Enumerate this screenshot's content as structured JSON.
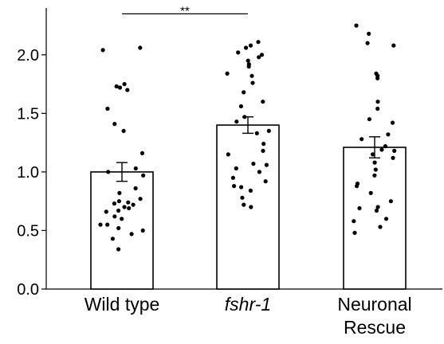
{
  "chart_data": {
    "type": "bar",
    "categories": [
      {
        "lines": [
          "Wild type"
        ],
        "italic": false
      },
      {
        "lines": [
          "fshr-1"
        ],
        "italic": true
      },
      {
        "lines": [
          "Neuronal",
          "Rescue"
        ],
        "italic": false
      }
    ],
    "values": [
      1.0,
      1.4,
      1.21
    ],
    "error": [
      0.08,
      0.07,
      0.09
    ],
    "ylim": [
      0,
      2.4
    ],
    "yticks": [
      "0.0",
      "0.5",
      "1.0",
      "1.5",
      "2.0"
    ],
    "grid": false,
    "bar_fill": "#ffffff",
    "bar_stroke": "#000000",
    "point_color": "#000000",
    "points": [
      [
        2.06,
        2.04,
        1.75,
        1.73,
        1.72,
        1.7,
        1.54,
        1.41,
        1.35,
        1.16,
        1.03,
        1.0,
        0.97,
        0.86,
        0.82,
        0.77,
        0.75,
        0.74,
        0.73,
        0.72,
        0.7,
        0.69,
        0.67,
        0.66,
        0.62,
        0.6,
        0.55,
        0.55,
        0.52,
        0.5,
        0.47,
        0.43,
        0.34
      ],
      [
        2.11,
        2.08,
        2.06,
        2.02,
        2.0,
        1.98,
        1.95,
        1.92,
        1.9,
        1.84,
        1.82,
        1.76,
        1.68,
        1.6,
        1.56,
        1.47,
        1.43,
        1.35,
        1.33,
        1.24,
        1.18,
        1.15,
        1.07,
        1.06,
        1.03,
        1.0,
        0.95,
        0.92,
        0.88,
        0.87,
        0.84,
        0.78,
        0.72,
        0.7
      ],
      [
        2.25,
        2.18,
        2.1,
        2.08,
        1.84,
        1.82,
        1.8,
        1.6,
        1.54,
        1.45,
        1.42,
        1.32,
        1.28,
        1.22,
        1.19,
        1.18,
        1.15,
        1.12,
        1.08,
        1.02,
        0.97,
        0.9,
        0.88,
        0.82,
        0.75,
        0.7,
        0.69,
        0.67,
        0.6,
        0.58,
        0.53,
        0.48
      ]
    ],
    "significance": {
      "from": 0,
      "to": 1,
      "label": "**",
      "y": 2.35
    }
  }
}
